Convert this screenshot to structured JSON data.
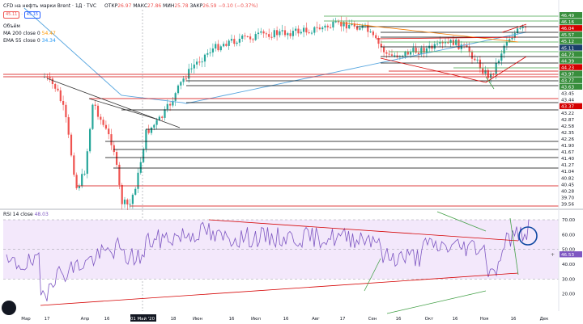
{
  "header": {
    "symbol": "CFD на нефть марки Brent · 1Д · TVC",
    "ohlc": [
      {
        "label": "ОТКР",
        "value": "26.97"
      },
      {
        "label": "МАКС",
        "value": "27.86"
      },
      {
        "label": "МИН",
        "value": "25.78"
      },
      {
        "label": "ЗАКР",
        "value": "26.59"
      },
      {
        "label": "",
        "value": "−0.10 (−0.37%)"
      }
    ],
    "bid": "45.11",
    "ask": "45.15",
    "volume_label": "Объём",
    "ma200": {
      "label": "MA 200 close 0",
      "value": "54.47"
    },
    "ema55": {
      "label": "EMA 55 close 0",
      "value": "34.34"
    }
  },
  "colors": {
    "up": "#26a69a",
    "down": "#ef5350",
    "ma": "#5ba8e0",
    "rsi": "#7e57c2",
    "rsi_band": "#f3e8fb",
    "hline": "#000000",
    "red_level": "#d50000",
    "green_level": "#43a047",
    "price_tag_bg": "#388e3c",
    "current_tag_bg": "#1a3f6b"
  },
  "chart_data": [
    {
      "type": "candlestick",
      "title": "CFD на нефть марки Brent · 1Д · TVC",
      "x_ticks": [
        "Мар",
        "17",
        "Апр",
        "16",
        "01 Май '20",
        "18",
        "Июн",
        "16",
        "Июл",
        "16",
        "Авг",
        "17",
        "Сен",
        "16",
        "Окт",
        "16",
        "Ноя",
        "16",
        "Дек"
      ],
      "y_price_labels": [
        "46.49",
        "46.16",
        "46.04",
        "45.57",
        "45.12",
        "45.11",
        "44.73",
        "44.39",
        "44.23",
        "43.97",
        "43.77",
        "43.63",
        "43.45",
        "43.44",
        "43.37",
        "43.22",
        "42.87",
        "42.58",
        "42.35",
        "42.26",
        "41.90",
        "41.67",
        "41.40",
        "41.27",
        "41.04",
        "40.82",
        "40.45",
        "40.28",
        "39.70",
        "39.56"
      ],
      "ma200_value": 54.47,
      "ema55_value": 34.34
    },
    {
      "type": "line",
      "title": "RSI 14 close",
      "value_label": "48.03",
      "y_ticks": [
        "70.00",
        "60.00",
        "50.00",
        "40.00",
        "30.00",
        "20.00"
      ],
      "current_value_tag": "46.53",
      "band": [
        30,
        70
      ]
    }
  ]
}
